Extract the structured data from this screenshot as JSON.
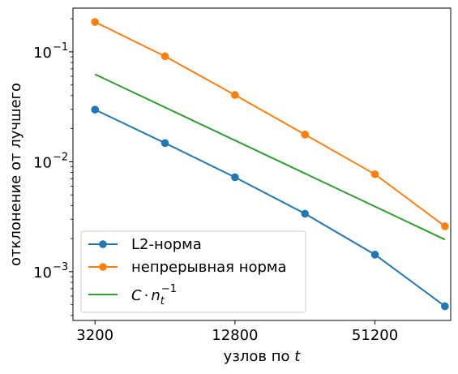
{
  "chart_data": {
    "type": "line",
    "x_scale": "log2",
    "y_scale": "log10",
    "xlim": [
      2572,
      108400
    ],
    "ylim": [
      0.00036,
      0.25
    ],
    "x_ticks": [
      3200,
      12800,
      51200
    ],
    "x_tick_labels": [
      "3200",
      "12800",
      "51200"
    ],
    "y_ticks": [
      0.001,
      0.01,
      0.1
    ],
    "y_tick_labels": {
      "0.001": {
        "base": "10",
        "exp": "−3"
      },
      "0.01": {
        "base": "10",
        "exp": "−2"
      },
      "0.1": {
        "base": "10",
        "exp": "−1"
      }
    },
    "xlabel": {
      "text": "узлов по ",
      "var": "t"
    },
    "ylabel": "отклонение от лучшего",
    "grid": false,
    "legend_position": "lower-left",
    "series": [
      {
        "name": "L2-норма",
        "color": "#1f77b4",
        "marker": "circle",
        "x": [
          3200,
          6400,
          12800,
          25600,
          51200,
          102400
        ],
        "y": [
          0.0298,
          0.0148,
          0.00723,
          0.00337,
          0.00143,
          0.000485
        ]
      },
      {
        "name": "непрерывная норма",
        "color": "#ff7f0e",
        "marker": "circle",
        "x": [
          3200,
          6400,
          12800,
          25600,
          51200,
          102400
        ],
        "y": [
          0.187,
          0.0912,
          0.0405,
          0.0177,
          0.0077,
          0.00259
        ]
      },
      {
        "name_parts": {
          "c": "C",
          "dot": "·",
          "n": "n",
          "sub": "t",
          "sup": "−1"
        },
        "color": "#2ca02c",
        "marker": "none",
        "x": [
          3200,
          102400
        ],
        "y": [
          0.0625,
          0.00196
        ]
      }
    ]
  }
}
